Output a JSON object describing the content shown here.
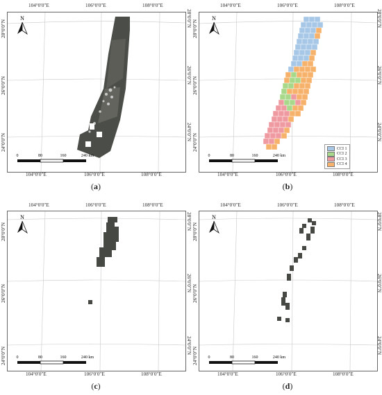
{
  "ticks": {
    "lon_top": [
      "104°0′0″E",
      "106°0′0″E",
      "108°0′0″E"
    ],
    "lon_bottom": [
      "104°0′0″E",
      "106°0′0″E",
      "108°0′0″E"
    ],
    "lat": [
      "28°0′0″N",
      "26°0′0″N",
      "24°0′0″N"
    ]
  },
  "north_label": "N",
  "scale": [
    "0",
    "80",
    "160",
    "240 km"
  ],
  "captions": [
    "a",
    "b",
    "c",
    "d"
  ],
  "legend": [
    {
      "label": "CCI 1",
      "color": "#a7c7e7"
    },
    {
      "label": "CCI 2",
      "color": "#a8d98a"
    },
    {
      "label": "CCI 3",
      "color": "#ee9aa0"
    },
    {
      "label": "CCI 4",
      "color": "#f6b26b"
    }
  ]
}
